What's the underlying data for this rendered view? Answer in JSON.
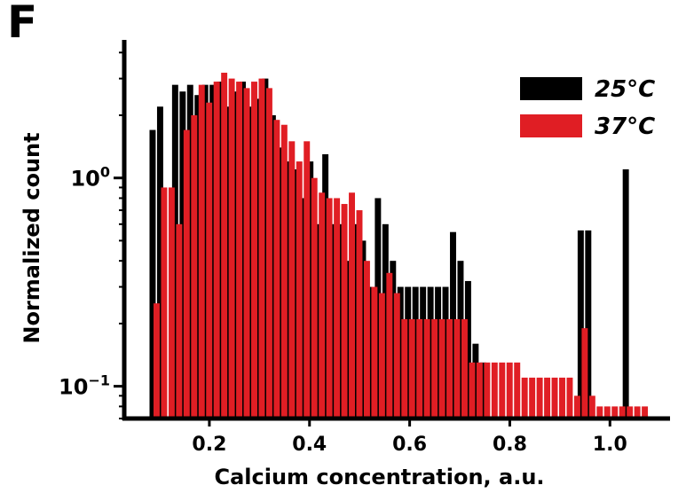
{
  "panel_label": "F",
  "chart_data": {
    "type": "bar",
    "xlabel": "Calcium concentration, a.u.",
    "ylabel": "Normalized count",
    "xlim": [
      0.03,
      1.12
    ],
    "ylim": [
      0.07,
      4.6
    ],
    "yscale": "log",
    "x_ticks": [
      "0.2",
      "0.4",
      "0.6",
      "0.8",
      "1.0"
    ],
    "y_ticks": [
      {
        "value": 1,
        "base": "10",
        "exp": "0"
      },
      {
        "value": 0.1,
        "base": "10",
        "exp": "−1"
      }
    ],
    "grid": false,
    "legend": "top-right",
    "bin_width": 0.015,
    "series": [
      {
        "name": "25°C",
        "color": "#000000",
        "x": [
          0.088,
          0.103,
          0.133,
          0.148,
          0.163,
          0.178,
          0.193,
          0.208,
          0.223,
          0.238,
          0.253,
          0.268,
          0.283,
          0.298,
          0.313,
          0.328,
          0.343,
          0.358,
          0.373,
          0.388,
          0.403,
          0.418,
          0.433,
          0.448,
          0.463,
          0.478,
          0.493,
          0.508,
          0.523,
          0.538,
          0.553,
          0.568,
          0.583,
          0.598,
          0.613,
          0.628,
          0.643,
          0.658,
          0.673,
          0.688,
          0.703,
          0.718,
          0.733,
          0.748,
          0.943,
          0.958,
          1.033
        ],
        "values": [
          1.7,
          2.2,
          2.8,
          2.6,
          2.8,
          2.5,
          2.8,
          2.8,
          2.9,
          2.2,
          2.6,
          2.9,
          2.2,
          2.4,
          3.0,
          2.0,
          1.4,
          1.2,
          1.1,
          0.8,
          1.2,
          0.6,
          1.3,
          0.6,
          0.6,
          0.4,
          0.6,
          0.5,
          0.3,
          0.8,
          0.6,
          0.4,
          0.3,
          0.3,
          0.3,
          0.3,
          0.3,
          0.3,
          0.3,
          0.55,
          0.4,
          0.32,
          0.16,
          0.13,
          0.56,
          0.56,
          1.1
        ]
      },
      {
        "name": "37°C",
        "color": "#e01e24",
        "x": [
          0.096,
          0.111,
          0.126,
          0.141,
          0.156,
          0.171,
          0.186,
          0.201,
          0.216,
          0.231,
          0.246,
          0.261,
          0.276,
          0.291,
          0.306,
          0.321,
          0.336,
          0.351,
          0.366,
          0.381,
          0.396,
          0.411,
          0.426,
          0.441,
          0.456,
          0.471,
          0.486,
          0.501,
          0.516,
          0.531,
          0.546,
          0.561,
          0.576,
          0.591,
          0.606,
          0.621,
          0.636,
          0.651,
          0.666,
          0.681,
          0.696,
          0.711,
          0.726,
          0.741,
          0.756,
          0.771,
          0.786,
          0.801,
          0.816,
          0.831,
          0.846,
          0.861,
          0.876,
          0.891,
          0.906,
          0.921,
          0.936,
          0.951,
          0.966,
          0.981,
          0.996,
          1.011,
          1.026,
          1.041,
          1.056,
          1.071
        ],
        "values": [
          0.25,
          0.9,
          0.9,
          0.6,
          1.7,
          2.0,
          2.8,
          2.3,
          2.9,
          3.2,
          3.0,
          2.9,
          2.7,
          2.9,
          3.0,
          2.7,
          1.9,
          1.8,
          1.5,
          1.2,
          1.5,
          1.0,
          0.85,
          0.8,
          0.8,
          0.75,
          0.85,
          0.7,
          0.4,
          0.3,
          0.28,
          0.35,
          0.28,
          0.21,
          0.21,
          0.21,
          0.21,
          0.21,
          0.21,
          0.21,
          0.21,
          0.21,
          0.13,
          0.13,
          0.13,
          0.13,
          0.13,
          0.13,
          0.13,
          0.11,
          0.11,
          0.11,
          0.11,
          0.11,
          0.11,
          0.11,
          0.09,
          0.19,
          0.09,
          0.08,
          0.08,
          0.08,
          0.08,
          0.08,
          0.08,
          0.08
        ]
      }
    ]
  }
}
